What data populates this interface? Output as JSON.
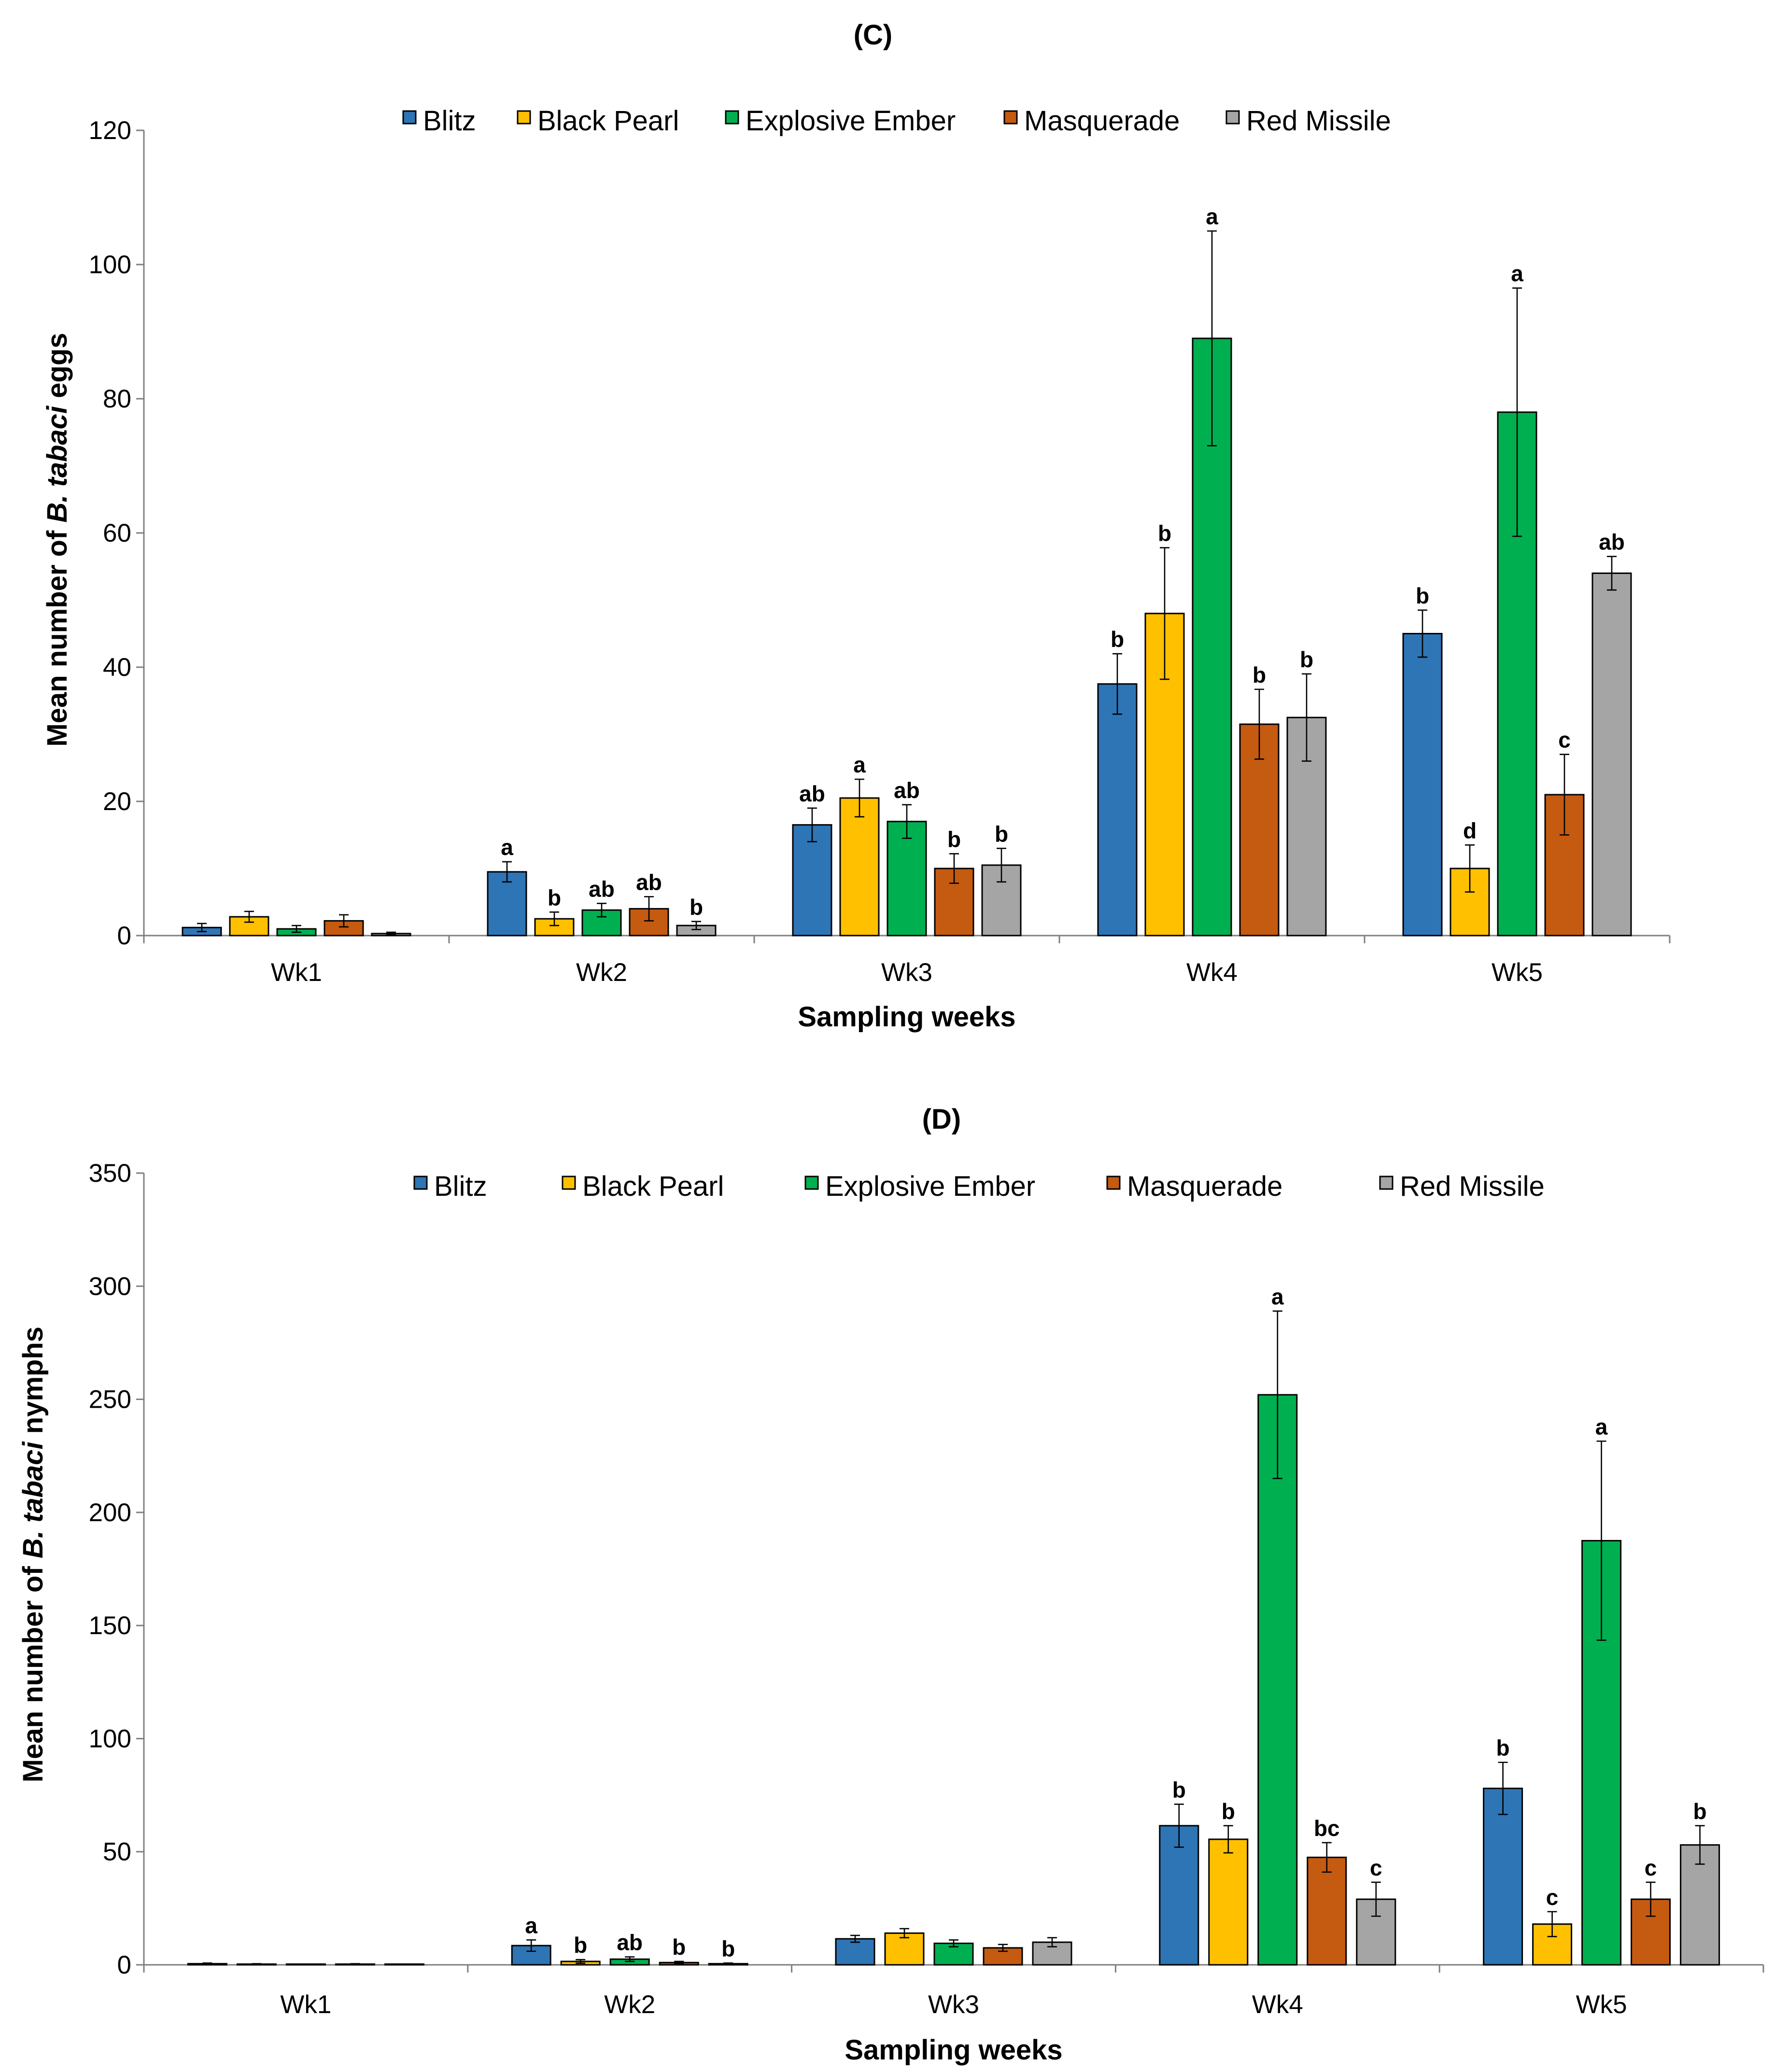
{
  "chart_data": [
    {
      "type": "bar",
      "title": "(C)",
      "xlabel": "Sampling weeks",
      "ylabel": "Mean number of B. tabaci eggs",
      "ylabel_parts": [
        "Mean number of ",
        "B. tabaci",
        " eggs"
      ],
      "ylim": [
        0,
        120
      ],
      "ytick_step": 20,
      "ytick_labels": [
        "0",
        "20",
        "40",
        "60",
        "80",
        "100",
        "120"
      ],
      "grid": false,
      "legend_position": "top",
      "categories": [
        "Wk1",
        "Wk2",
        "Wk3",
        "Wk4",
        "Wk5"
      ],
      "series": [
        {
          "name": "Blitz",
          "color": "#2e75b6",
          "values": [
            1.2,
            9.5,
            16.5,
            37.5,
            45
          ],
          "errors": [
            0.6,
            1.5,
            2.5,
            4.5,
            3.5
          ],
          "letters": [
            "",
            "a",
            "ab",
            "b",
            "b"
          ]
        },
        {
          "name": "Black Pearl",
          "color": "#ffc000",
          "values": [
            2.8,
            2.5,
            20.5,
            48,
            10
          ],
          "errors": [
            0.8,
            1.0,
            2.8,
            9.8,
            3.5
          ],
          "letters": [
            "",
            "b",
            "a",
            "b",
            "d"
          ]
        },
        {
          "name": "Explosive Ember",
          "color": "#00b050",
          "values": [
            1.0,
            3.8,
            17,
            89,
            78
          ],
          "errors": [
            0.5,
            1.0,
            2.5,
            16,
            18.5
          ],
          "letters": [
            "",
            "ab",
            "ab",
            "a",
            "a"
          ]
        },
        {
          "name": "Masquerade",
          "color": "#c55a11",
          "values": [
            2.2,
            4.0,
            10,
            31.5,
            21
          ],
          "errors": [
            0.9,
            1.8,
            2.2,
            5.2,
            6.0
          ],
          "letters": [
            "",
            "ab",
            "b",
            "b",
            "c"
          ]
        },
        {
          "name": "Red Missile",
          "color": "#a5a5a5",
          "values": [
            0.3,
            1.5,
            10.5,
            32.5,
            54
          ],
          "errors": [
            0.2,
            0.6,
            2.5,
            6.5,
            2.5
          ],
          "letters": [
            "",
            "b",
            "b",
            "b",
            "ab"
          ]
        }
      ]
    },
    {
      "type": "bar",
      "title": "(D)",
      "xlabel": "Sampling weeks",
      "ylabel": "Mean number of B. tabaci nymphs",
      "ylabel_parts": [
        "Mean number of ",
        "B. tabaci",
        " nymphs"
      ],
      "ylim": [
        0,
        350
      ],
      "ytick_step": 50,
      "ytick_labels": [
        "0",
        "50",
        "100",
        "150",
        "200",
        "250",
        "300",
        "350"
      ],
      "grid": false,
      "legend_position": "top",
      "categories": [
        "Wk1",
        "Wk2",
        "Wk3",
        "Wk4",
        "Wk5"
      ],
      "series": [
        {
          "name": "Blitz",
          "color": "#2e75b6",
          "values": [
            0.5,
            8.5,
            11.5,
            61.5,
            78
          ],
          "errors": [
            0.3,
            2.5,
            1.5,
            9.5,
            11.5
          ],
          "letters": [
            "",
            "a",
            "",
            "b",
            "b"
          ]
        },
        {
          "name": "Black Pearl",
          "color": "#ffc000",
          "values": [
            0.3,
            1.5,
            14,
            55.5,
            18
          ],
          "errors": [
            0.2,
            0.8,
            2.0,
            6.0,
            5.5
          ],
          "letters": [
            "",
            "b",
            "",
            "b",
            "c"
          ]
        },
        {
          "name": "Explosive Ember",
          "color": "#00b050",
          "values": [
            0.1,
            2.5,
            9.5,
            252,
            187.5
          ],
          "errors": [
            0.1,
            1.0,
            1.5,
            37,
            44
          ],
          "letters": [
            "",
            "ab",
            "",
            "a",
            "a"
          ]
        },
        {
          "name": "Masquerade",
          "color": "#c55a11",
          "values": [
            0.3,
            1.0,
            7.5,
            47.5,
            29
          ],
          "errors": [
            0.2,
            0.5,
            1.5,
            6.5,
            7.5
          ],
          "letters": [
            "",
            "b",
            "",
            "bc",
            "c"
          ]
        },
        {
          "name": "Red Missile",
          "color": "#a5a5a5",
          "values": [
            0.1,
            0.5,
            10,
            29,
            53
          ],
          "errors": [
            0.1,
            0.3,
            2.0,
            7.5,
            8.5
          ],
          "letters": [
            "",
            "b",
            "",
            "c",
            "b"
          ]
        }
      ]
    }
  ]
}
